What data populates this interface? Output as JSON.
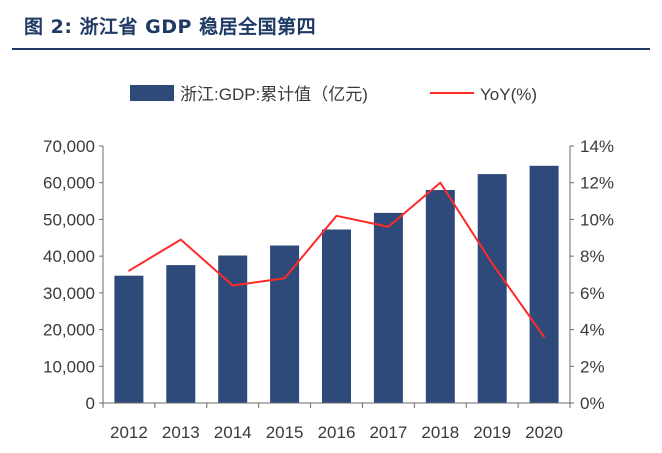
{
  "figure": {
    "title": "图 2:  浙江省 GDP 稳居全国第四"
  },
  "chart_data": {
    "type": "bar",
    "categories": [
      "2012",
      "2013",
      "2014",
      "2015",
      "2016",
      "2017",
      "2018",
      "2019",
      "2020"
    ],
    "series": [
      {
        "name": "浙江:GDP:累计值（亿元)",
        "kind": "bar",
        "axis": "left",
        "color": "#2e4a7a",
        "values": [
          34665,
          37568,
          40173,
          42886,
          47251,
          51768,
          58003,
          62352,
          64613
        ]
      },
      {
        "name": "YoY(%)",
        "kind": "line",
        "axis": "right",
        "color": "#ff2a2a",
        "values": [
          7.2,
          8.9,
          6.4,
          6.8,
          10.2,
          9.6,
          12.0,
          7.6,
          3.6
        ]
      }
    ],
    "y_left": {
      "min": 0,
      "max": 70000,
      "step": 10000,
      "tick_labels": [
        "0",
        "10,000",
        "20,000",
        "30,000",
        "40,000",
        "50,000",
        "60,000",
        "70,000"
      ]
    },
    "y_right": {
      "min": 0,
      "max": 14,
      "step": 2,
      "tick_labels": [
        "0%",
        "2%",
        "4%",
        "6%",
        "8%",
        "10%",
        "12%",
        "14%"
      ]
    },
    "legend_position": "top",
    "grid": false
  }
}
